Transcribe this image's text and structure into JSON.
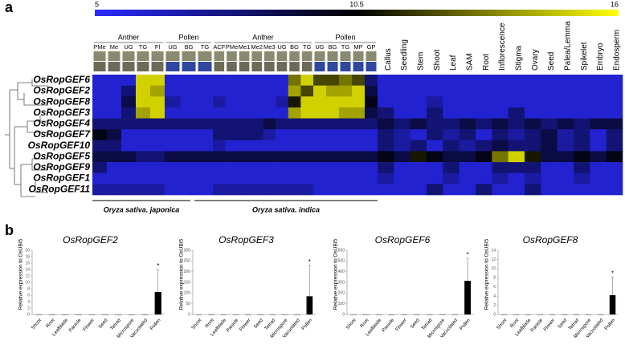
{
  "panel_labels": [
    "a",
    "b"
  ],
  "chart_data": [
    {
      "type": "heatmap",
      "zlim": [
        5,
        16
      ],
      "zticks": [
        5,
        10.5,
        16
      ],
      "column_groups": [
        {
          "name": "Anther",
          "columns": [
            "PMe",
            "Me",
            "UG",
            "TG",
            "Fl"
          ]
        },
        {
          "name": "Pollen",
          "columns": [
            "UG",
            "BG",
            "TG"
          ]
        },
        {
          "name": "Anther",
          "columns": [
            "ACF",
            "PMe",
            "Me1",
            "Me2",
            "Me3",
            "UG",
            "BG",
            "TG"
          ]
        },
        {
          "name": "Pollen",
          "columns": [
            "UG",
            "BG",
            "TG",
            "MP",
            "GP"
          ]
        },
        {
          "columns": [
            "Callus",
            "Seedling",
            "Stem",
            "Shoot",
            "Leaf",
            "SAM",
            "Root",
            "Inflorescence",
            "Stigma",
            "Ovary",
            "Seed",
            "Palea/Lemma",
            "Spikelet",
            "Embryo",
            "Endosperm"
          ]
        }
      ],
      "species": [
        "Oryza sativa. japonica",
        "Oryza sativa. indica"
      ],
      "rows": [
        "OsRopGEF6",
        "OsRopGEF2",
        "OsRopGEF8",
        "OsRopGEF3",
        "OsRopGEF4",
        "OsRopGEF7",
        "OsRopGEF10",
        "OsRopGEF5",
        "OsRopGEF9",
        "OsRopGEF1",
        "OsRopGEF11"
      ],
      "values": [
        [
          6,
          6,
          6,
          15,
          15,
          6,
          6,
          6,
          6,
          6,
          6,
          6,
          6,
          6,
          13,
          15,
          12,
          12,
          13,
          12,
          8,
          6,
          6,
          6,
          6,
          6,
          6,
          6,
          6,
          6,
          6,
          6,
          6,
          6,
          6,
          6
        ],
        [
          6,
          6,
          8,
          15,
          14,
          6,
          6,
          6,
          6,
          6,
          6,
          6,
          6,
          6,
          14,
          12,
          15,
          14,
          14,
          15,
          9,
          6,
          6,
          6,
          6,
          6,
          6,
          6,
          6,
          6,
          6,
          6,
          6,
          6,
          6,
          6
        ],
        [
          6,
          6,
          9,
          15,
          15,
          7,
          6,
          6,
          7,
          6,
          6,
          6,
          6,
          7,
          11,
          15,
          15,
          15,
          15,
          15,
          10,
          6,
          6,
          6,
          7,
          6,
          6,
          6,
          6,
          6,
          6,
          6,
          6,
          6,
          6,
          6
        ],
        [
          6,
          6,
          8,
          14,
          15,
          6,
          6,
          6,
          6,
          6,
          6,
          6,
          6,
          6,
          14,
          15,
          15,
          15,
          14,
          14,
          9,
          8,
          6,
          6,
          8,
          6,
          6,
          6,
          6,
          8,
          6,
          6,
          6,
          6,
          6,
          6
        ],
        [
          8,
          8,
          8,
          8,
          8,
          8,
          8,
          8,
          8,
          8,
          8,
          8,
          9,
          8,
          8,
          8,
          8,
          8,
          8,
          8,
          8,
          9,
          8,
          9,
          8,
          8,
          9,
          8,
          9,
          8,
          9,
          8,
          9,
          8,
          9,
          9
        ],
        [
          10,
          9,
          6,
          6,
          6,
          6,
          6,
          6,
          8,
          8,
          8,
          8,
          7,
          6,
          6,
          6,
          6,
          6,
          6,
          6,
          6,
          8,
          7,
          6,
          8,
          7,
          8,
          6,
          8,
          7,
          8,
          9,
          7,
          8,
          6,
          8
        ],
        [
          8,
          8,
          6,
          6,
          6,
          6,
          6,
          6,
          7,
          6,
          6,
          6,
          6,
          6,
          6,
          6,
          6,
          6,
          6,
          6,
          6,
          8,
          7,
          8,
          6,
          8,
          7,
          8,
          9,
          8,
          8,
          9,
          7,
          8,
          6,
          8
        ],
        [
          9,
          9,
          9,
          8,
          8,
          9,
          9,
          9,
          9,
          9,
          9,
          9,
          9,
          9,
          9,
          9,
          9,
          9,
          9,
          9,
          9,
          10,
          9,
          11,
          10,
          9,
          9,
          10,
          13,
          15,
          11,
          9,
          9,
          10,
          9,
          10
        ],
        [
          8,
          6,
          6,
          6,
          6,
          6,
          6,
          6,
          6,
          6,
          6,
          6,
          6,
          6,
          6,
          6,
          6,
          6,
          6,
          6,
          6,
          8,
          6,
          6,
          6,
          8,
          6,
          6,
          8,
          8,
          8,
          6,
          6,
          8,
          6,
          6
        ],
        [
          6,
          6,
          6,
          6,
          6,
          6,
          6,
          6,
          6,
          6,
          6,
          6,
          6,
          6,
          6,
          6,
          6,
          6,
          6,
          6,
          6,
          7,
          6,
          6,
          6,
          7,
          6,
          6,
          7,
          6,
          7,
          6,
          6,
          7,
          6,
          6
        ],
        [
          7,
          7,
          7,
          7,
          7,
          6,
          6,
          6,
          7,
          7,
          7,
          7,
          7,
          7,
          7,
          7,
          6,
          6,
          6,
          6,
          6,
          6,
          6,
          6,
          8,
          6,
          6,
          8,
          6,
          6,
          8,
          6,
          6,
          6,
          6,
          6
        ]
      ]
    },
    {
      "type": "bar",
      "title": "OsRopGEF2",
      "y_label": "Relative expression to OsUBI5",
      "categories": [
        "Shoot",
        "Root",
        "Leafblade",
        "Panicle",
        "Flower",
        "Seed",
        "Tetrad",
        "Microspore",
        "Vacuolated",
        "Pollen"
      ],
      "values": [
        0,
        0,
        0,
        0,
        0,
        0,
        0,
        0,
        0,
        7
      ],
      "errors": [
        0,
        0,
        0,
        0,
        0,
        0,
        0,
        0,
        0,
        7
      ],
      "annotations": [
        null,
        null,
        null,
        null,
        null,
        null,
        null,
        null,
        null,
        "*"
      ],
      "color": "#000000",
      "ylim": [
        0,
        20
      ],
      "yticks": [
        0,
        2,
        4,
        6,
        8,
        10,
        12,
        14,
        16,
        18,
        20
      ]
    },
    {
      "type": "bar",
      "title": "OsRopGEF3",
      "y_label": "Relative expression to OsUBI5",
      "categories": [
        "Shoot",
        "Root",
        "Leafblade",
        "Panicle",
        "Flower",
        "Seed",
        "Tetrad",
        "Microspore",
        "Vacuolated",
        "Pollen"
      ],
      "values": [
        0,
        0,
        0,
        0,
        0,
        0,
        0,
        0,
        0,
        85
      ],
      "errors": [
        0,
        0,
        0,
        0,
        0,
        0,
        0,
        0,
        0,
        145
      ],
      "annotations": [
        null,
        null,
        null,
        null,
        null,
        null,
        null,
        null,
        null,
        "*"
      ],
      "color": "#000000",
      "ylim": [
        0,
        300
      ],
      "yticks": [
        0,
        50,
        100,
        150,
        200,
        250,
        300
      ]
    },
    {
      "type": "bar",
      "title": "OsRopGEF6",
      "y_label": "Relative expression to OsUBI5",
      "categories": [
        "Shoot",
        "Root",
        "Leafblade",
        "Panicle",
        "Flower",
        "Seed",
        "Tetrad",
        "Microspore",
        "Vacuolated",
        "Pollen"
      ],
      "values": [
        0,
        0,
        0,
        0,
        0,
        0,
        0,
        0,
        0,
        315
      ],
      "errors": [
        0,
        0,
        0,
        0,
        0,
        0,
        0,
        0,
        0,
        210
      ],
      "annotations": [
        null,
        null,
        null,
        null,
        null,
        null,
        null,
        null,
        null,
        "*"
      ],
      "color": "#000000",
      "ylim": [
        0,
        600
      ],
      "yticks": [
        0,
        100,
        200,
        300,
        400,
        500,
        600
      ]
    },
    {
      "type": "bar",
      "title": "OsRopGEF8",
      "y_label": "Relative expression to OsUBI5",
      "categories": [
        "Shoot",
        "Root",
        "Leafblade",
        "Panicle",
        "Flower",
        "Seed",
        "Tetrad",
        "Microspore",
        "Vacuolated",
        "Pollen"
      ],
      "values": [
        0,
        0,
        0,
        0,
        0,
        0,
        0,
        0,
        0,
        4.2
      ],
      "errors": [
        0,
        0,
        0,
        0,
        0,
        0,
        0,
        0,
        0,
        4
      ],
      "annotations": [
        null,
        null,
        null,
        null,
        null,
        null,
        null,
        null,
        null,
        "*"
      ],
      "color": "#000000",
      "ylim": [
        0,
        14
      ],
      "yticks": [
        0,
        2,
        4,
        6,
        8,
        10,
        12,
        14
      ]
    }
  ]
}
